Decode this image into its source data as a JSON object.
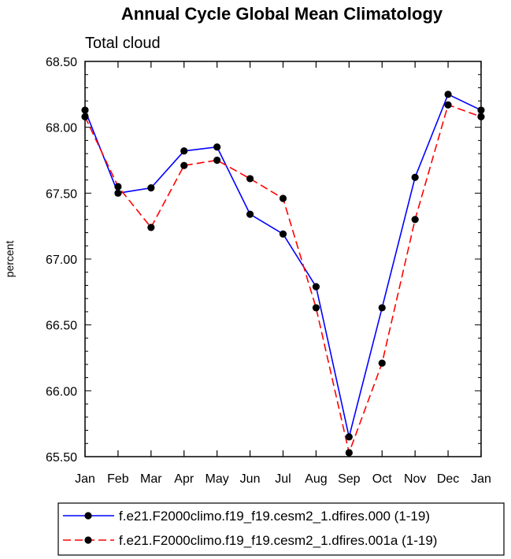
{
  "chart_data": {
    "type": "line",
    "title": "Annual Cycle Global Mean Climatology",
    "subtitle": "Total cloud",
    "xlabel": "",
    "ylabel": "percent",
    "categories": [
      "Jan",
      "Feb",
      "Mar",
      "Apr",
      "May",
      "Jun",
      "Jul",
      "Aug",
      "Sep",
      "Oct",
      "Nov",
      "Dec",
      "Jan"
    ],
    "yticks": [
      "65.50",
      "66.00",
      "66.50",
      "67.00",
      "67.50",
      "68.00",
      "68.50"
    ],
    "ylim": [
      65.5,
      68.5
    ],
    "series": [
      {
        "name": "f.e21.F2000climo.f19_f19.cesm2_1.dfires.000 (1-19)",
        "color": "#0000ff",
        "style": "solid",
        "values": [
          68.13,
          67.5,
          67.54,
          67.82,
          67.85,
          67.34,
          67.19,
          66.79,
          65.65,
          66.63,
          67.62,
          68.25,
          68.13
        ]
      },
      {
        "name": "f.e21.F2000climo.f19_f19.cesm2_1.dfires.001a (1-19)",
        "color": "#ff0000",
        "style": "dashed",
        "values": [
          68.08,
          67.55,
          67.24,
          67.71,
          67.75,
          67.61,
          67.46,
          66.63,
          65.53,
          66.21,
          67.3,
          68.17,
          68.08
        ]
      }
    ],
    "grid": false,
    "legend_position": "bottom"
  }
}
